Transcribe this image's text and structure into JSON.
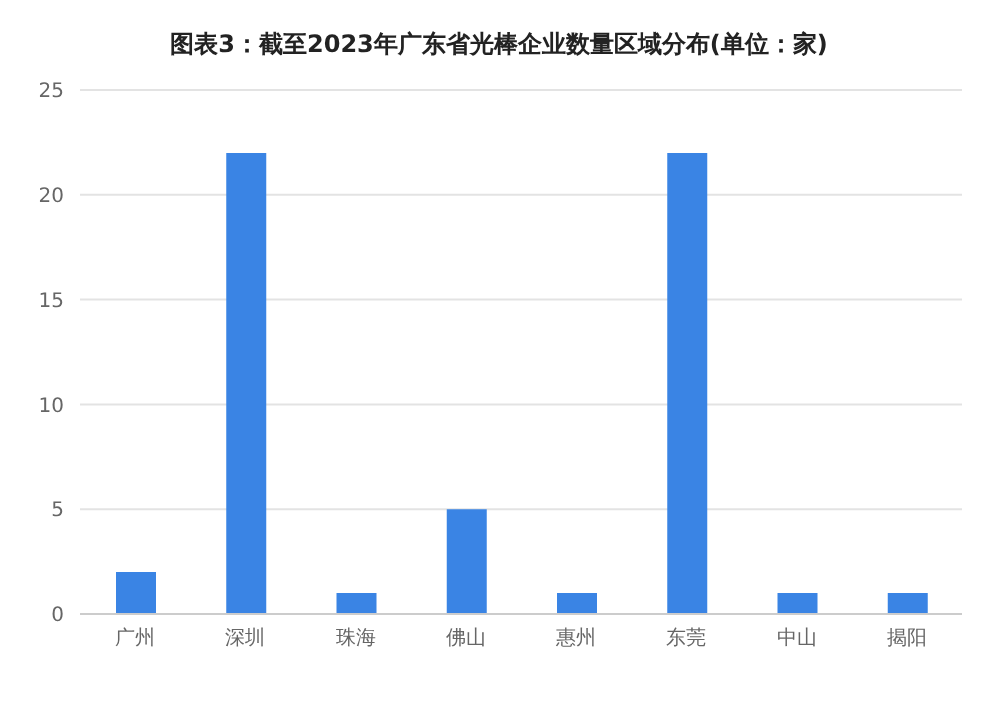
{
  "chart_data": {
    "type": "bar",
    "title": "图表3：截至2023年广东省光棒企业数量区域分布(单位：家)",
    "categories": [
      "广州",
      "深圳",
      "珠海",
      "佛山",
      "惠州",
      "东莞",
      "中山",
      "揭阳"
    ],
    "values": [
      2,
      22,
      1,
      5,
      1,
      22,
      1,
      1
    ],
    "color": "#3a84e4",
    "ylim": [
      0,
      25
    ],
    "yticks": [
      0,
      5,
      10,
      15,
      20,
      25
    ],
    "grid": "y",
    "legend": false
  }
}
